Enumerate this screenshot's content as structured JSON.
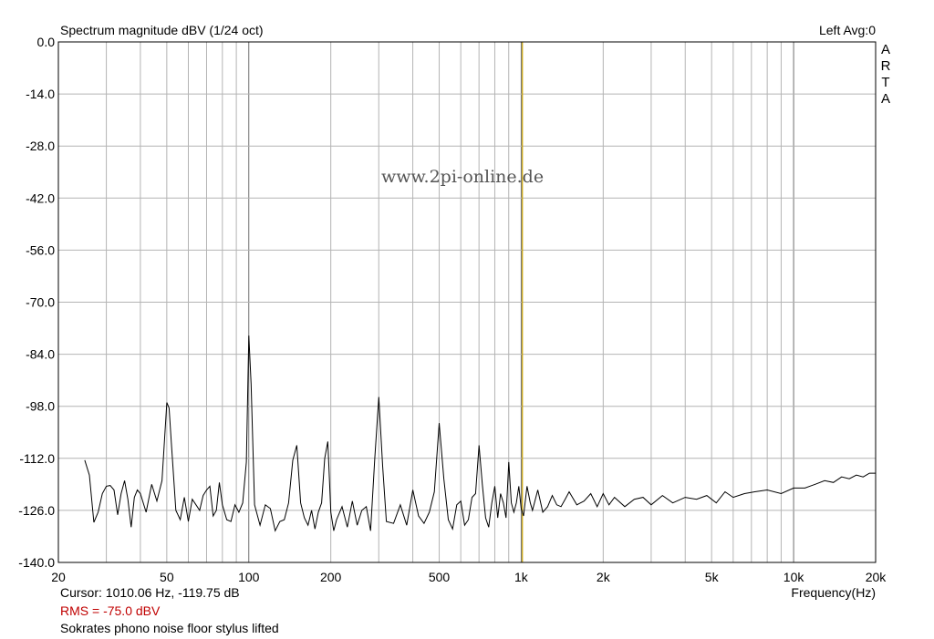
{
  "header": {
    "title": "Spectrum magnitude dBV (1/24 oct)",
    "channel": "Left  Avg:0",
    "brand_letters": [
      "A",
      "R",
      "T",
      "A"
    ]
  },
  "watermark": "www.2pi-online.de",
  "footer": {
    "cursor": "Cursor:  1010.06 Hz, -119.75 dB",
    "rms": "RMS =  -75.0 dBV",
    "note": "Sokrates phono noise floor stylus lifted",
    "x_unit": "Frequency(Hz)"
  },
  "colors": {
    "trace": "#000000",
    "grid": "#b4b4b4",
    "grid_decade": "#6e6e6e",
    "cursor_line": "#c8a000",
    "rms_text": "#c00000"
  },
  "chart_data": {
    "type": "line",
    "title": "Spectrum magnitude dBV (1/24 oct)",
    "xlabel": "Frequency(Hz)",
    "ylabel": "",
    "x_scale": "log",
    "xlim": [
      20,
      20000
    ],
    "ylim": [
      -140,
      0
    ],
    "grid": true,
    "y_ticks": [
      0,
      -14,
      -28,
      -42,
      -56,
      -70,
      -84,
      -98,
      -112,
      -126,
      -140
    ],
    "y_tick_labels": [
      "0.0",
      "-14.0",
      "-28.0",
      "-42.0",
      "-56.0",
      "-70.0",
      "-84.0",
      "-98.0",
      "-112.0",
      "-126.0",
      "-140.0"
    ],
    "x_ticks": [
      20,
      50,
      100,
      200,
      500,
      1000,
      2000,
      5000,
      10000,
      20000
    ],
    "x_tick_labels": [
      "20",
      "50",
      "100",
      "200",
      "500",
      "1k",
      "2k",
      "5k",
      "10k",
      "20k"
    ],
    "cursor": {
      "frequency_hz": 1010.06,
      "level_db": -119.75
    },
    "series": [
      {
        "x": [
          25,
          26,
          27,
          28,
          29,
          30,
          31,
          32,
          33,
          34,
          35,
          36,
          37,
          38,
          39,
          40,
          42,
          44,
          46,
          48,
          50,
          51,
          52,
          54,
          56,
          58,
          60,
          62,
          64,
          66,
          68,
          70,
          72,
          74,
          76,
          78,
          80,
          83,
          86,
          89,
          92,
          95,
          98,
          100,
          102,
          105,
          110,
          115,
          120,
          125,
          130,
          135,
          140,
          145,
          150,
          155,
          160,
          165,
          170,
          175,
          180,
          185,
          190,
          195,
          200,
          205,
          210,
          220,
          230,
          240,
          250,
          260,
          270,
          280,
          290,
          300,
          310,
          320,
          340,
          360,
          380,
          400,
          420,
          440,
          460,
          480,
          500,
          520,
          540,
          560,
          580,
          600,
          620,
          640,
          660,
          680,
          700,
          720,
          740,
          760,
          780,
          800,
          820,
          840,
          860,
          880,
          900,
          920,
          940,
          960,
          980,
          1000,
          1020,
          1050,
          1080,
          1100,
          1150,
          1200,
          1250,
          1300,
          1350,
          1400,
          1450,
          1500,
          1600,
          1700,
          1800,
          1900,
          2000,
          2100,
          2200,
          2400,
          2600,
          2800,
          3000,
          3300,
          3600,
          4000,
          4400,
          4800,
          5200,
          5600,
          6000,
          6600,
          7200,
          8000,
          9000,
          10000,
          11000,
          12000,
          13000,
          14000,
          15000,
          16000,
          17000,
          18000,
          19000,
          20000
        ],
        "y": [
          -112.5,
          -116.5,
          -129.2,
          -126.5,
          -121.5,
          -119.5,
          -119.3,
          -120.5,
          -127.2,
          -121.5,
          -118.0,
          -123.0,
          -130.5,
          -122.5,
          -120.5,
          -121.5,
          -126.5,
          -119.0,
          -123.5,
          -118.0,
          -97.0,
          -98.5,
          -108.0,
          -126.0,
          -128.5,
          -122.5,
          -129.0,
          -123.0,
          -124.5,
          -126.0,
          -122.0,
          -120.5,
          -119.5,
          -127.5,
          -126.0,
          -118.5,
          -124.5,
          -128.5,
          -129.0,
          -124.5,
          -126.5,
          -124.0,
          -113.0,
          -79.0,
          -92.0,
          -124.5,
          -130.0,
          -124.5,
          -125.5,
          -131.5,
          -129.0,
          -128.5,
          -124.0,
          -112.5,
          -108.5,
          -124.0,
          -128.0,
          -130.0,
          -126.0,
          -131.0,
          -126.5,
          -124.0,
          -112.0,
          -107.5,
          -126.5,
          -131.5,
          -128.5,
          -125.0,
          -130.5,
          -123.5,
          -130.0,
          -126.0,
          -125.0,
          -131.5,
          -112.0,
          -95.5,
          -114.0,
          -129.0,
          -129.5,
          -124.5,
          -130.0,
          -120.5,
          -127.5,
          -129.5,
          -126.5,
          -121.0,
          -102.5,
          -117.5,
          -128.5,
          -131.0,
          -124.5,
          -123.5,
          -130.0,
          -128.5,
          -122.5,
          -121.5,
          -108.5,
          -119.0,
          -128.0,
          -130.5,
          -124.0,
          -119.5,
          -128.0,
          -121.5,
          -124.0,
          -128.0,
          -113.0,
          -124.0,
          -126.5,
          -124.0,
          -119.5,
          -125.5,
          -127.5,
          -119.5,
          -124.0,
          -126.0,
          -120.5,
          -126.5,
          -125.0,
          -122.0,
          -124.5,
          -125.0,
          -123.0,
          -121.0,
          -124.5,
          -123.5,
          -121.5,
          -125.0,
          -121.5,
          -124.5,
          -122.5,
          -125.0,
          -123.0,
          -122.5,
          -124.5,
          -122.0,
          -124.0,
          -122.5,
          -123.0,
          -122.0,
          -124.0,
          -121.0,
          -122.5,
          -121.5,
          -121.0,
          -120.5,
          -121.5,
          -120.0,
          -120.0,
          -119.0,
          -118.0,
          -118.5,
          -117.0,
          -117.5,
          -116.5,
          -117.0,
          -116.0,
          -116.0
        ]
      }
    ]
  }
}
